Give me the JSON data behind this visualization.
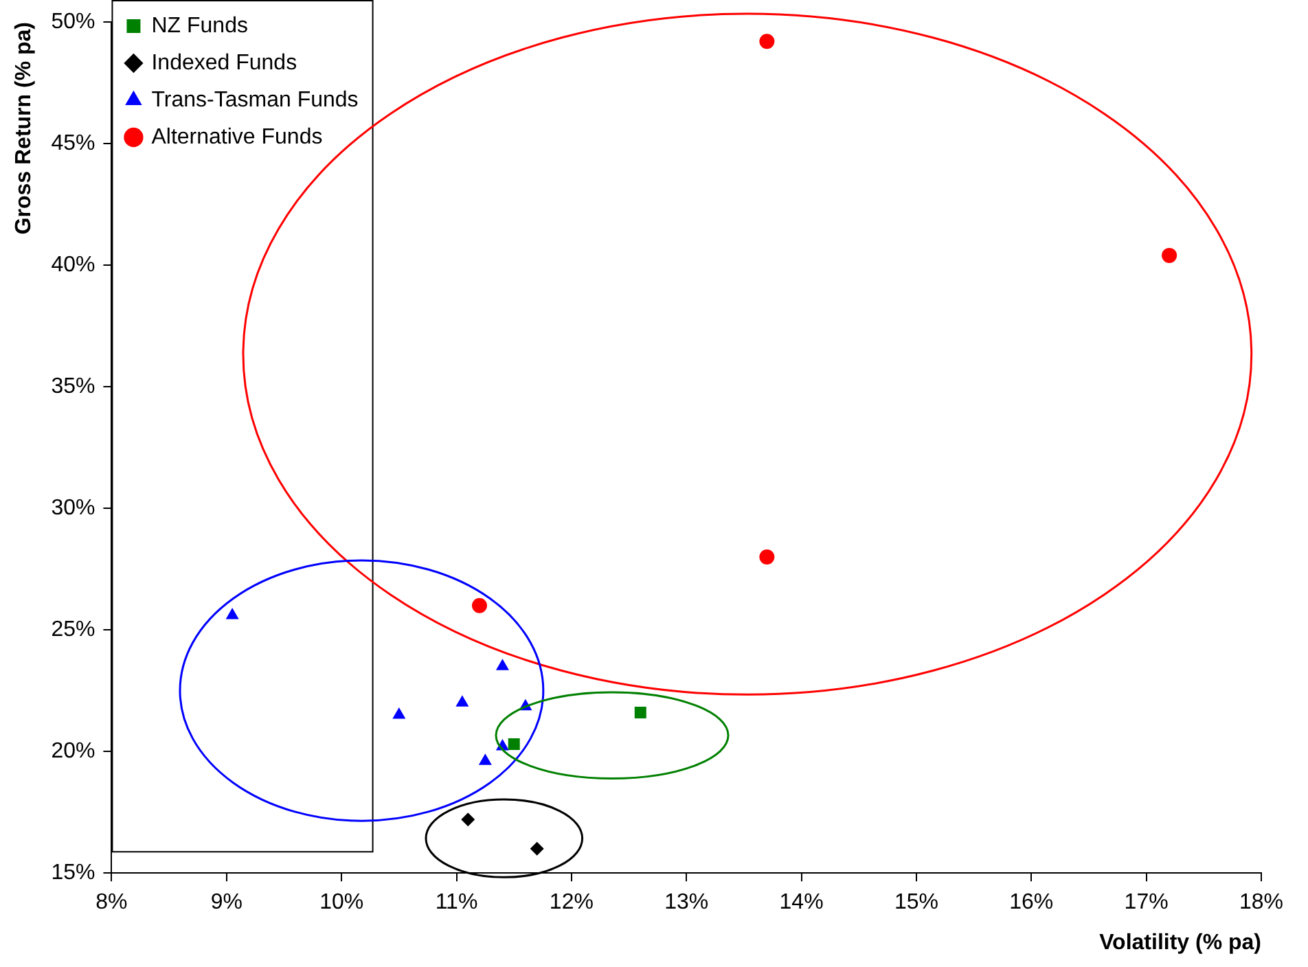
{
  "chart_data": {
    "type": "scatter",
    "xlabel": "Volatility (% pa)",
    "ylabel": "Gross Return (% pa)",
    "xlim": [
      8,
      18
    ],
    "xticks": [
      {
        "value": 8,
        "label": "8%"
      },
      {
        "value": 9,
        "label": "9%"
      },
      {
        "value": 10,
        "label": "10%"
      },
      {
        "value": 11,
        "label": "11%"
      },
      {
        "value": 12,
        "label": "12%"
      },
      {
        "value": 13,
        "label": "13%"
      },
      {
        "value": 14,
        "label": "14%"
      },
      {
        "value": 15,
        "label": "15%"
      },
      {
        "value": 16,
        "label": "16%"
      },
      {
        "value": 17,
        "label": "17%"
      },
      {
        "value": 18,
        "label": "18%"
      }
    ],
    "ylim": [
      15,
      50
    ],
    "yticks": [
      {
        "value": 15,
        "label": "15%"
      },
      {
        "value": 20,
        "label": "20%"
      },
      {
        "value": 25,
        "label": "25%"
      },
      {
        "value": 30,
        "label": "30%"
      },
      {
        "value": 35,
        "label": "35%"
      },
      {
        "value": 40,
        "label": "40%"
      },
      {
        "value": 45,
        "label": "45%"
      },
      {
        "value": 50,
        "label": "50%"
      }
    ],
    "grid": false,
    "legend": "top left",
    "series": [
      {
        "name": "NZ Funds",
        "color": "#008000",
        "marker": "square",
        "x": [
          11.5,
          12.6
        ],
        "values": [
          20.3,
          21.6
        ]
      },
      {
        "name": "Indexed Funds",
        "color": "#000000",
        "marker": "diamond",
        "x": [
          11.1,
          11.7
        ],
        "values": [
          17.2,
          16.0
        ]
      },
      {
        "name": "Trans-Tasman Funds",
        "color": "#0000ff",
        "marker": "triangle",
        "x": [
          9.05,
          11.4,
          11.05,
          10.5,
          11.6,
          11.4,
          11.25
        ],
        "values": [
          25.6,
          23.5,
          22.0,
          21.5,
          21.85,
          20.2,
          19.6
        ]
      },
      {
        "name": "Alternative Funds",
        "color": "#ff0000",
        "marker": "circle",
        "x": [
          11.2,
          13.7,
          17.2,
          13.7
        ],
        "values": [
          26.0,
          49.2,
          40.4,
          28.0
        ]
      }
    ]
  }
}
